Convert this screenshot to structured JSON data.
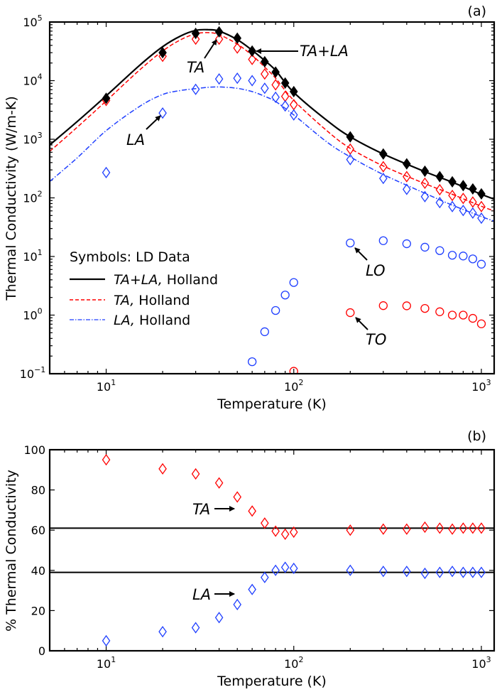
{
  "chart_data": [
    {
      "type": "scatter",
      "panel_label": "(a)",
      "xlabel": "Temperature (K)",
      "ylabel": "Thermal Conductivity (W/m-K)",
      "xscale": "log",
      "yscale": "log",
      "xlim": [
        5,
        1170
      ],
      "ylim": [
        0.1,
        100000
      ],
      "xticks": [
        10,
        100,
        1000
      ],
      "yticks": [
        0.1,
        1,
        10,
        100,
        1000,
        10000,
        100000
      ],
      "grid": false,
      "legend_position": "center-left",
      "legend_title": "Symbols: LD Data",
      "legend": [
        {
          "italic": "TA+LA,",
          "text": " Holland",
          "color": "#000000",
          "style": "solid"
        },
        {
          "italic": "TA,",
          "text": " Holland",
          "color": "#ff0000",
          "style": "dashed"
        },
        {
          "italic": "LA,",
          "text": " Holland",
          "color": "#1f3fff",
          "style": "dashdot"
        }
      ],
      "x": [
        10,
        20,
        30,
        40,
        50,
        60,
        70,
        80,
        90,
        100,
        200,
        300,
        400,
        500,
        600,
        700,
        800,
        900,
        1000
      ],
      "series": [
        {
          "name": "TA+LA",
          "marker": "filled-diamond",
          "color": "#000000",
          "values": [
            5000,
            30000,
            64000,
            68000,
            53000,
            32000,
            21000,
            14000,
            9100,
            6500,
            1100,
            560,
            380,
            285,
            230,
            188,
            162,
            142,
            117
          ]
        },
        {
          "name": "TA",
          "marker": "open-diamond",
          "color": "#ff0000",
          "values": [
            4600,
            26000,
            51000,
            51000,
            36000,
            23000,
            13000,
            8500,
            5400,
            3900,
            680,
            340,
            230,
            178,
            138,
            110,
            98,
            85,
            71
          ]
        },
        {
          "name": "LA",
          "marker": "open-diamond",
          "color": "#1f3fff",
          "values": [
            270,
            2800,
            7100,
            10700,
            11000,
            10000,
            7400,
            5200,
            3700,
            2600,
            450,
            215,
            140,
            105,
            83,
            71,
            61,
            55,
            45
          ]
        },
        {
          "name": "LO",
          "marker": "open-circle",
          "color": "#1f3fff",
          "x": [
            60,
            70,
            80,
            90,
            100,
            200,
            300,
            400,
            500,
            600,
            700,
            800,
            900,
            1000
          ],
          "values": [
            0.16,
            0.52,
            1.2,
            2.2,
            3.6,
            17,
            18.6,
            16.5,
            14.4,
            12.6,
            10.5,
            10.2,
            9.1,
            7.4
          ]
        },
        {
          "name": "TO",
          "marker": "open-circle",
          "color": "#ff0000",
          "x": [
            100,
            200,
            300,
            400,
            500,
            600,
            700,
            800,
            900,
            1000
          ],
          "values": [
            0.11,
            1.1,
            1.45,
            1.44,
            1.3,
            1.14,
            1.0,
            1.0,
            0.88,
            0.71
          ]
        }
      ],
      "curves": [
        {
          "name": "TA+LA, Holland",
          "color": "#000000",
          "style": "solid",
          "x": [
            5,
            7,
            10,
            15,
            20,
            25,
            30,
            35,
            40,
            50,
            60,
            70,
            80,
            100,
            150,
            200,
            300,
            500,
            700,
            1000,
            1170
          ],
          "values": [
            800,
            2000,
            5500,
            18000,
            38000,
            58000,
            72000,
            74000,
            70000,
            50000,
            33000,
            22000,
            15000,
            6300,
            2100,
            1100,
            560,
            280,
            185,
            115,
            95
          ]
        },
        {
          "name": "TA, Holland",
          "color": "#ff0000",
          "style": "dashed",
          "x": [
            5,
            7,
            10,
            15,
            20,
            25,
            30,
            35,
            40,
            50,
            60,
            70,
            80,
            100,
            150,
            200,
            300,
            500,
            700,
            1000,
            1170
          ],
          "values": [
            620,
            1600,
            4500,
            15000,
            32000,
            50000,
            63000,
            66000,
            61000,
            42000,
            27000,
            17000,
            11000,
            4600,
            1400,
            700,
            350,
            175,
            115,
            72,
            60
          ]
        },
        {
          "name": "LA, Holland",
          "color": "#1f3fff",
          "style": "dashdot",
          "x": [
            5,
            7,
            10,
            15,
            20,
            25,
            30,
            35,
            40,
            50,
            60,
            70,
            80,
            100,
            150,
            200,
            300,
            500,
            700,
            1000,
            1170
          ],
          "values": [
            190,
            480,
            1400,
            3600,
            5800,
            6800,
            7300,
            7700,
            7800,
            7400,
            6500,
            5400,
            4400,
            2600,
            900,
            500,
            250,
            120,
            75,
            48,
            40
          ]
        }
      ],
      "annotations": [
        {
          "text": "TA",
          "points_to": "TA at 40 K"
        },
        {
          "text": "TA+LA",
          "points_to": "TA+LA at 60 K"
        },
        {
          "text": "LA",
          "points_to": "LA at 20 K"
        },
        {
          "text": "LO",
          "points_to": "LO at 200 K"
        },
        {
          "text": "TO",
          "points_to": "TO at 200 K"
        }
      ]
    },
    {
      "type": "scatter",
      "panel_label": "(b)",
      "xlabel": "Temperature (K)",
      "ylabel": "% Thermal Conductivity",
      "xscale": "log",
      "xlim": [
        5,
        1170
      ],
      "ylim": [
        0,
        100
      ],
      "xticks": [
        10,
        100,
        1000
      ],
      "yticks": [
        0,
        20,
        40,
        60,
        80,
        100
      ],
      "grid": false,
      "x": [
        10,
        20,
        30,
        40,
        50,
        60,
        70,
        80,
        90,
        100,
        200,
        300,
        400,
        500,
        600,
        700,
        800,
        900,
        1000
      ],
      "series": [
        {
          "name": "TA",
          "marker": "open-diamond",
          "color": "#ff0000",
          "values": [
            95,
            90.5,
            88,
            83.5,
            76.5,
            69.5,
            63.5,
            59.5,
            58,
            59,
            60,
            60.5,
            60.5,
            61.5,
            61,
            60.5,
            61,
            61,
            61
          ]
        },
        {
          "name": "LA",
          "marker": "open-diamond",
          "color": "#1f3fff",
          "values": [
            5,
            9.5,
            11.5,
            16.5,
            23,
            30.5,
            36.5,
            40,
            41.5,
            41,
            40,
            39.5,
            39.5,
            38.5,
            39,
            39.5,
            39,
            39,
            39
          ]
        }
      ],
      "hlines": [
        61,
        39
      ],
      "annotations": [
        {
          "text": "TA"
        },
        {
          "text": "LA"
        }
      ]
    }
  ]
}
